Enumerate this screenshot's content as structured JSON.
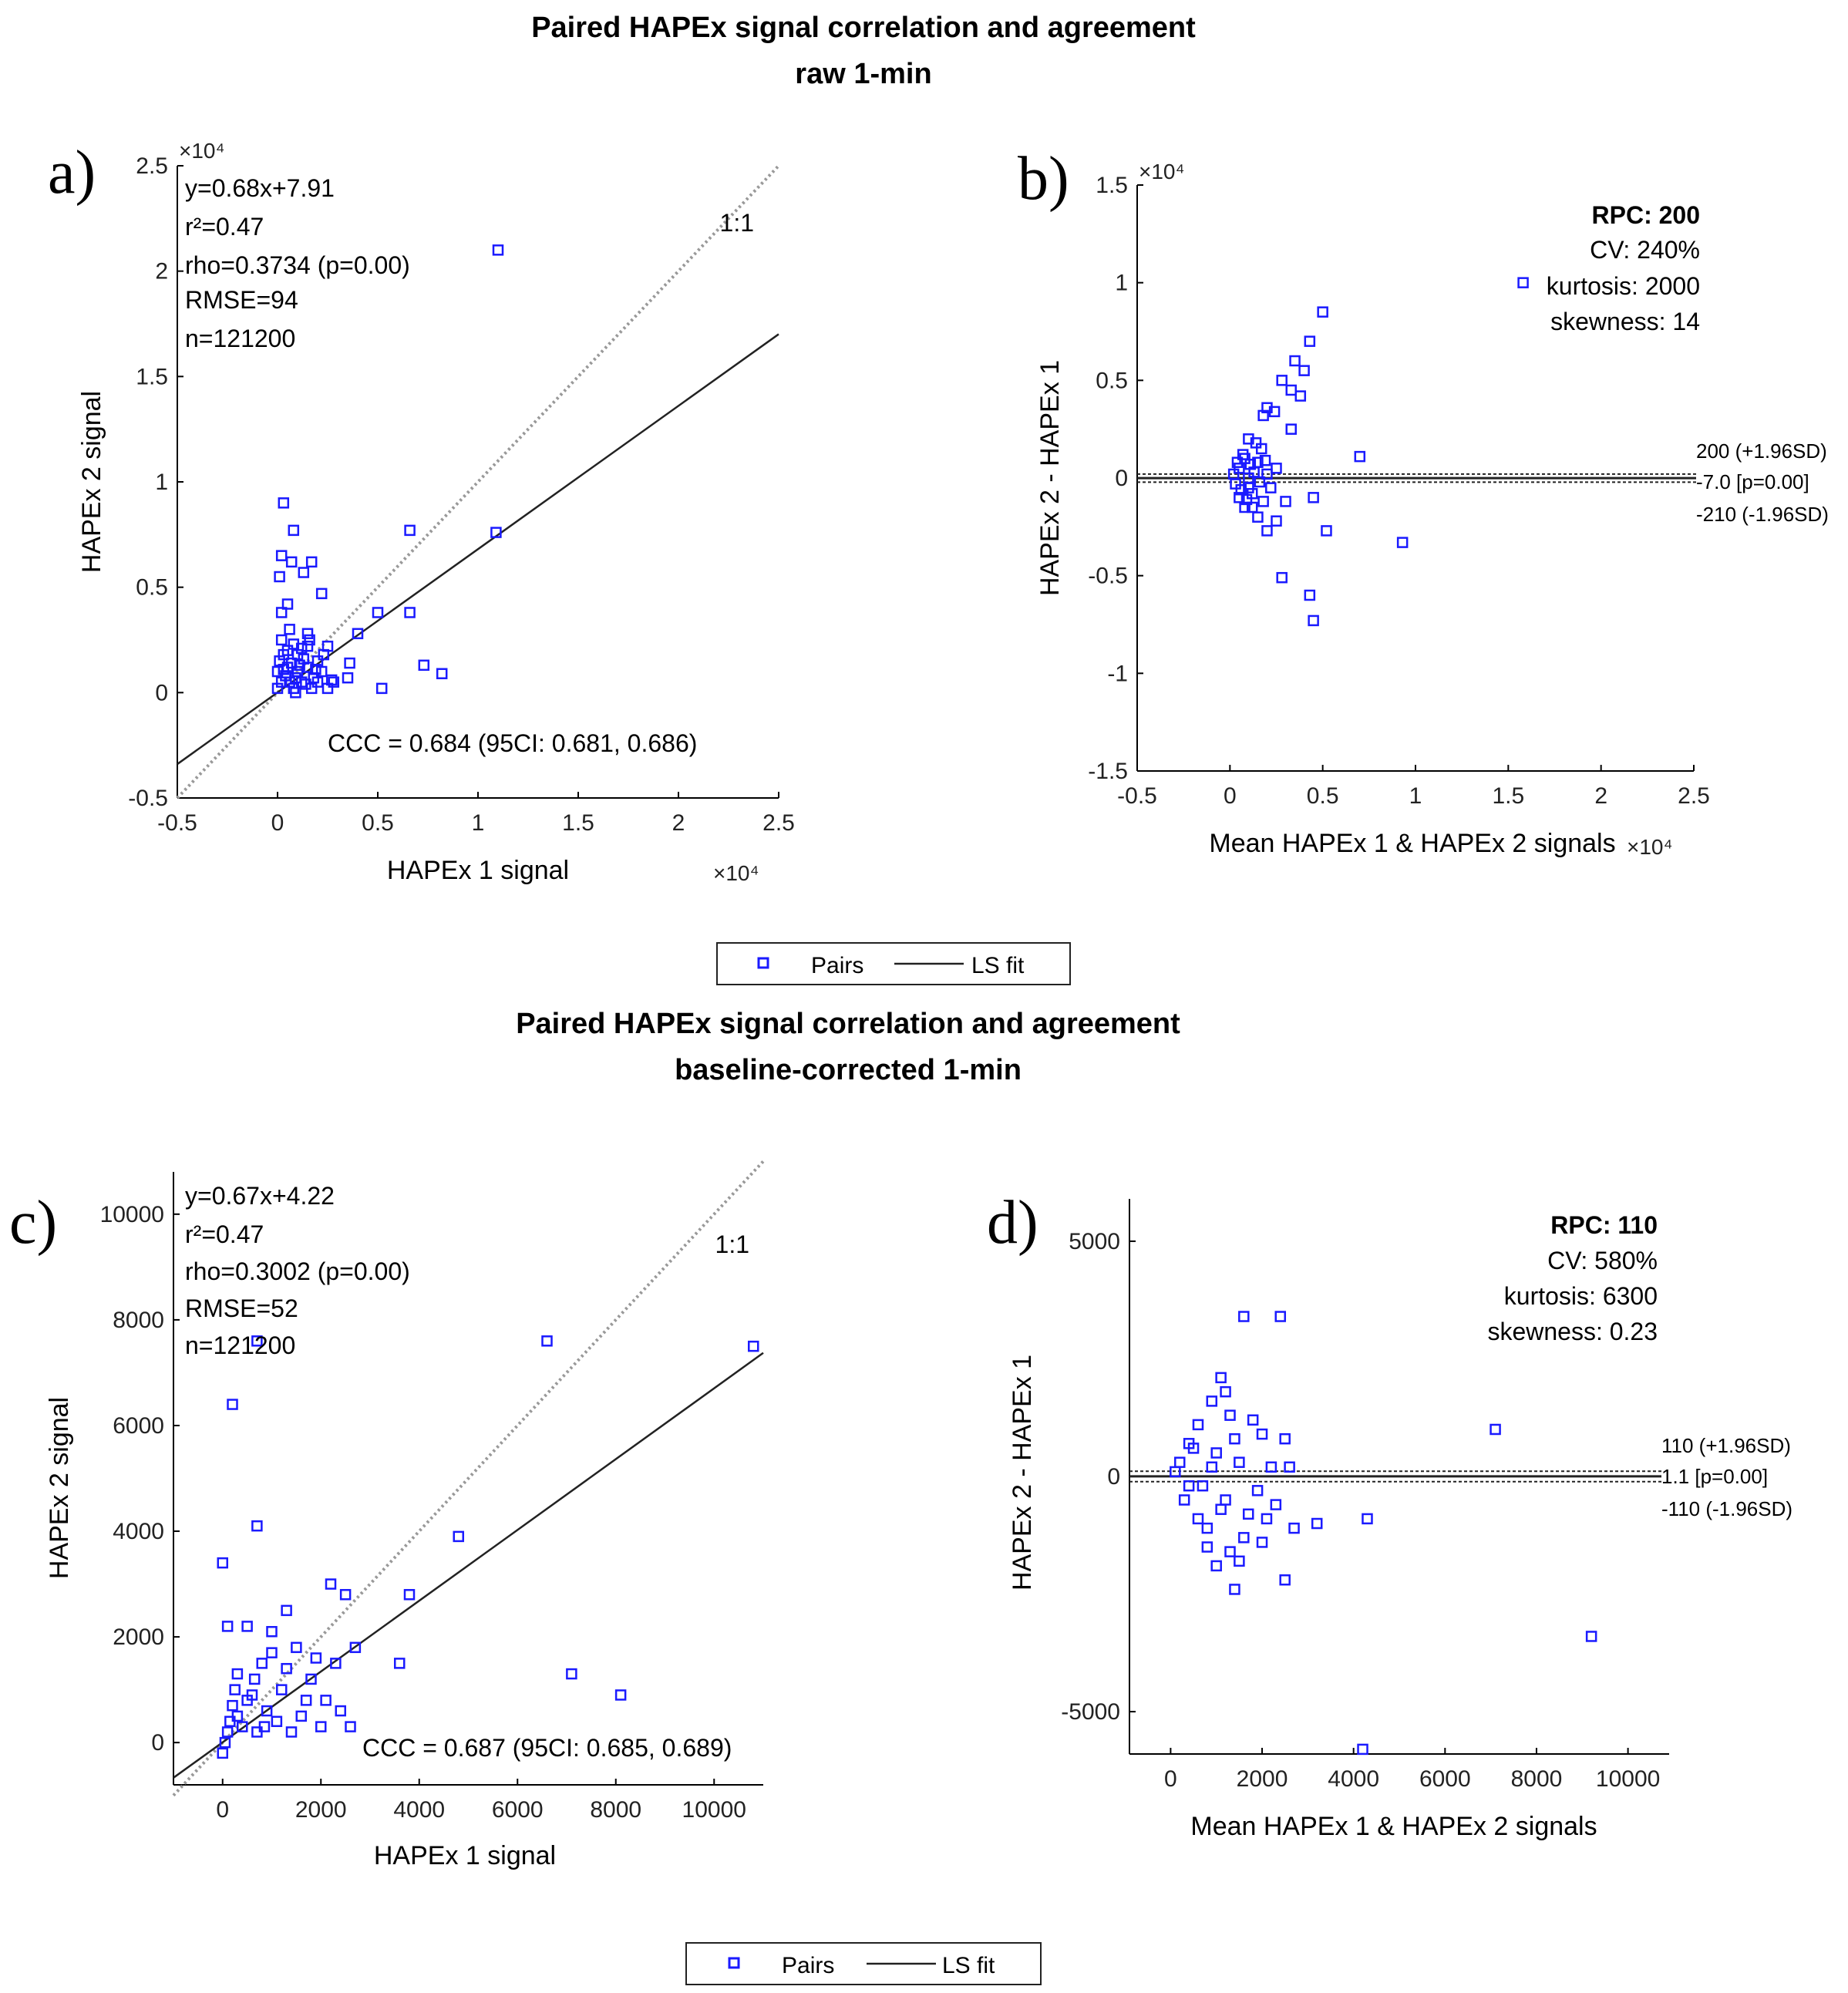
{
  "colors": {
    "points": "#1a1aff",
    "fit": "#222222",
    "ref": "#999999",
    "axis": "#000000"
  },
  "sections": [
    {
      "title_line1": "Paired HAPEx signal correlation and agreement",
      "title_line2": "raw 1-min"
    },
    {
      "title_line1": "Paired HAPEx signal correlation and agreement",
      "title_line2": "baseline-corrected 1-min"
    }
  ],
  "legends": [
    {
      "pairs_label": "Pairs",
      "fit_label": "LS fit"
    },
    {
      "pairs_label": "Pairs",
      "fit_label": "LS fit"
    }
  ],
  "chart_data": [
    {
      "panel": "a)",
      "type": "scatter",
      "xlabel": "HAPEx 1 signal",
      "ylabel": "HAPEx 2 signal",
      "x_exponent": "×10⁴",
      "y_exponent": "×10⁴",
      "xlim": [
        -0.5,
        2.5
      ],
      "ylim": [
        -0.5,
        2.5
      ],
      "xticks": [
        "-0.5",
        "0",
        "0.5",
        "1",
        "1.5",
        "2",
        "2.5"
      ],
      "yticks": [
        "-0.5",
        "0",
        "0.5",
        "1",
        "1.5",
        "2",
        "2.5"
      ],
      "stats": [
        "y=0.68x+7.91",
        "r²=0.47",
        "rho=0.3734 (p=0.00)",
        "RMSE=94",
        "n=121200"
      ],
      "ccc": "CCC = 0.684 (95CI: 0.681, 0.686)",
      "identity_label": "1:1",
      "fit": {
        "slope": 0.68,
        "intercept": 0.000791
      },
      "points": [
        [
          1.1,
          2.1
        ],
        [
          0.03,
          0.9
        ],
        [
          0.08,
          0.77
        ],
        [
          0.02,
          0.65
        ],
        [
          0.07,
          0.62
        ],
        [
          0.17,
          0.62
        ],
        [
          0.13,
          0.57
        ],
        [
          0.01,
          0.55
        ],
        [
          0.22,
          0.47
        ],
        [
          0.05,
          0.42
        ],
        [
          0.02,
          0.38
        ],
        [
          0.66,
          0.77
        ],
        [
          1.09,
          0.76
        ],
        [
          0.5,
          0.38
        ],
        [
          0.66,
          0.38
        ],
        [
          0.4,
          0.28
        ],
        [
          0.73,
          0.13
        ],
        [
          0.82,
          0.09
        ],
        [
          0.52,
          0.02
        ],
        [
          0.35,
          0.07
        ],
        [
          0.27,
          0.06
        ],
        [
          0.36,
          0.14
        ],
        [
          0.15,
          0.28
        ],
        [
          0.25,
          0.22
        ],
        [
          0.02,
          0.25
        ],
        [
          0.05,
          0.2
        ],
        [
          0.1,
          0.18
        ],
        [
          0.15,
          0.22
        ],
        [
          0.2,
          0.15
        ],
        [
          0.05,
          0.12
        ],
        [
          0.1,
          0.1
        ],
        [
          0.15,
          0.12
        ],
        [
          0.2,
          0.05
        ],
        [
          0.02,
          0.05
        ],
        [
          0.08,
          0.02
        ],
        [
          0.12,
          0.05
        ],
        [
          0.17,
          0.02
        ],
        [
          0.22,
          0.1
        ],
        [
          0.01,
          0.15
        ],
        [
          0.04,
          0.08
        ],
        [
          0.07,
          0.14
        ],
        [
          0.13,
          0.16
        ],
        [
          0.18,
          0.07
        ],
        [
          0.25,
          0.02
        ],
        [
          0.0,
          0.02
        ],
        [
          0.03,
          0.11
        ],
        [
          0.06,
          0.05
        ],
        [
          0.09,
          0.07
        ],
        [
          0.11,
          0.13
        ],
        [
          0.14,
          0.04
        ],
        [
          0.19,
          0.11
        ],
        [
          0.28,
          0.05
        ],
        [
          0.23,
          0.18
        ],
        [
          0.16,
          0.25
        ],
        [
          0.08,
          0.23
        ],
        [
          0.03,
          0.18
        ],
        [
          0.12,
          0.21
        ],
        [
          0.06,
          0.3
        ],
        [
          0.0,
          0.1
        ],
        [
          0.09,
          0.0
        ]
      ]
    },
    {
      "panel": "b)",
      "type": "scatter",
      "xlabel": "Mean HAPEx 1 & HAPEx 2 signals",
      "ylabel": "HAPEx 2 - HAPEx 1",
      "x_exponent": "×10⁴",
      "y_exponent": "×10⁴",
      "xlim": [
        -0.5,
        2.5
      ],
      "ylim": [
        -1.5,
        1.5
      ],
      "xticks": [
        "-0.5",
        "0",
        "0.5",
        "1",
        "1.5",
        "2",
        "2.5"
      ],
      "yticks": [
        "-1.5",
        "-1",
        "-0.5",
        "0",
        "0.5",
        "1",
        "1.5"
      ],
      "rpc": "RPC: 200",
      "stats": [
        "CV: 240%",
        "kurtosis: 2000",
        "skewness: 14"
      ],
      "limits": {
        "upper": 0.02,
        "mean": -0.0007,
        "lower": -0.021
      },
      "limit_labels": [
        "200 (+1.96SD)",
        "-7.0 [p=0.00]",
        "-210 (-1.96SD)"
      ],
      "points": [
        [
          0.5,
          0.85
        ],
        [
          0.43,
          0.7
        ],
        [
          0.35,
          0.6
        ],
        [
          0.4,
          0.55
        ],
        [
          0.28,
          0.5
        ],
        [
          0.33,
          0.45
        ],
        [
          0.38,
          0.42
        ],
        [
          0.2,
          0.36
        ],
        [
          0.24,
          0.34
        ],
        [
          0.18,
          0.32
        ],
        [
          0.33,
          0.25
        ],
        [
          0.7,
          0.11
        ],
        [
          0.93,
          -0.33
        ],
        [
          0.45,
          -0.1
        ],
        [
          0.52,
          -0.27
        ],
        [
          0.28,
          -0.51
        ],
        [
          0.43,
          -0.6
        ],
        [
          0.45,
          -0.73
        ],
        [
          0.3,
          -0.12
        ],
        [
          0.25,
          -0.22
        ],
        [
          0.2,
          -0.27
        ],
        [
          0.15,
          -0.2
        ],
        [
          0.1,
          0.2
        ],
        [
          0.12,
          -0.15
        ],
        [
          0.08,
          0.1
        ],
        [
          0.05,
          0.05
        ],
        [
          0.1,
          -0.05
        ],
        [
          0.15,
          0.08
        ],
        [
          0.2,
          0.02
        ],
        [
          0.03,
          -0.03
        ],
        [
          0.07,
          0.12
        ],
        [
          0.12,
          -0.08
        ],
        [
          0.17,
          0.15
        ],
        [
          0.22,
          -0.05
        ],
        [
          0.05,
          -0.1
        ],
        [
          0.1,
          0.0
        ],
        [
          0.18,
          -0.12
        ],
        [
          0.25,
          0.05
        ],
        [
          0.02,
          0.02
        ],
        [
          0.14,
          0.18
        ],
        [
          0.08,
          -0.15
        ],
        [
          0.16,
          -0.02
        ],
        [
          0.11,
          0.07
        ],
        [
          0.06,
          -0.06
        ],
        [
          0.13,
          0.03
        ],
        [
          0.19,
          0.09
        ],
        [
          0.04,
          0.08
        ],
        [
          0.09,
          -0.11
        ],
        [
          1.58,
          1.0
        ]
      ]
    },
    {
      "panel": "c)",
      "type": "scatter",
      "xlabel": "HAPEx 1 signal",
      "ylabel": "HAPEx 2 signal",
      "xlim": [
        -1000,
        11000
      ],
      "ylim": [
        -800,
        10800
      ],
      "xticks": [
        "0",
        "2000",
        "4000",
        "6000",
        "8000",
        "10000"
      ],
      "yticks": [
        "0",
        "2000",
        "4000",
        "6000",
        "8000",
        "10000"
      ],
      "stats": [
        "y=0.67x+4.22",
        "r²=0.47",
        "rho=0.3002 (p=0.00)",
        "RMSE=52",
        "n=121200"
      ],
      "ccc": "CCC = 0.687 (95CI: 0.685, 0.689)",
      "identity_label": "1:1",
      "fit": {
        "slope": 0.67,
        "intercept": 4.22
      },
      "points": [
        [
          700,
          7600
        ],
        [
          6600,
          7600
        ],
        [
          10800,
          7500
        ],
        [
          200,
          6400
        ],
        [
          700,
          4100
        ],
        [
          4800,
          3900
        ],
        [
          0,
          3400
        ],
        [
          3800,
          2800
        ],
        [
          2500,
          2800
        ],
        [
          2200,
          3000
        ],
        [
          1300,
          2500
        ],
        [
          3600,
          1500
        ],
        [
          7100,
          1300
        ],
        [
          8100,
          900
        ],
        [
          2700,
          1800
        ],
        [
          2300,
          1500
        ],
        [
          1800,
          1200
        ],
        [
          1000,
          2100
        ],
        [
          500,
          2200
        ],
        [
          100,
          2200
        ],
        [
          1500,
          1800
        ],
        [
          800,
          1500
        ],
        [
          300,
          1300
        ],
        [
          1200,
          1000
        ],
        [
          600,
          900
        ],
        [
          200,
          700
        ],
        [
          900,
          600
        ],
        [
          1600,
          500
        ],
        [
          2100,
          800
        ],
        [
          2400,
          600
        ],
        [
          1100,
          400
        ],
        [
          400,
          300
        ],
        [
          100,
          200
        ],
        [
          700,
          200
        ],
        [
          1400,
          200
        ],
        [
          2000,
          300
        ],
        [
          2600,
          300
        ],
        [
          50,
          0
        ],
        [
          300,
          500
        ],
        [
          500,
          800
        ],
        [
          1300,
          1400
        ],
        [
          1000,
          1700
        ],
        [
          1900,
          1600
        ],
        [
          250,
          1000
        ],
        [
          650,
          1200
        ],
        [
          1700,
          800
        ],
        [
          150,
          400
        ],
        [
          850,
          300
        ],
        [
          0,
          -200
        ]
      ]
    },
    {
      "panel": "d)",
      "type": "scatter",
      "xlabel": "Mean HAPEx 1 & HAPEx 2 signals",
      "ylabel": "HAPEx 2 - HAPEx 1",
      "xlim": [
        -900,
        10900
      ],
      "ylim": [
        -5900,
        5900
      ],
      "xticks": [
        "0",
        "2000",
        "4000",
        "6000",
        "8000",
        "10000"
      ],
      "yticks": [
        "-5000",
        "0",
        "5000"
      ],
      "rpc": "RPC: 110",
      "stats": [
        "CV: 580%",
        "kurtosis: 6300",
        "skewness: 0.23"
      ],
      "limits": {
        "upper": 110,
        "mean": 1.1,
        "lower": -110
      },
      "limit_labels": [
        "110 (+1.96SD)",
        "1.1 [p=0.00]",
        "-110 (-1.96SD)"
      ],
      "points": [
        [
          1600,
          3400
        ],
        [
          2400,
          3400
        ],
        [
          7100,
          1000
        ],
        [
          9200,
          -3400
        ],
        [
          4200,
          -5800
        ],
        [
          4300,
          -900
        ],
        [
          3200,
          -1000
        ],
        [
          2500,
          -2200
        ],
        [
          1400,
          -2400
        ],
        [
          1100,
          2100
        ],
        [
          900,
          1600
        ],
        [
          1300,
          1300
        ],
        [
          1800,
          1200
        ],
        [
          2000,
          900
        ],
        [
          2500,
          800
        ],
        [
          600,
          1100
        ],
        [
          400,
          700
        ],
        [
          1000,
          500
        ],
        [
          1500,
          300
        ],
        [
          2200,
          200
        ],
        [
          2600,
          200
        ],
        [
          200,
          300
        ],
        [
          700,
          -200
        ],
        [
          1200,
          -500
        ],
        [
          1700,
          -800
        ],
        [
          2100,
          -900
        ],
        [
          800,
          -1100
        ],
        [
          1300,
          -1600
        ],
        [
          1000,
          -1900
        ],
        [
          1500,
          -1800
        ],
        [
          2000,
          -1400
        ],
        [
          300,
          -500
        ],
        [
          500,
          600
        ],
        [
          1100,
          -700
        ],
        [
          1900,
          -300
        ],
        [
          600,
          -900
        ],
        [
          1400,
          800
        ],
        [
          2300,
          -600
        ],
        [
          2700,
          -1100
        ],
        [
          100,
          100
        ],
        [
          400,
          -200
        ],
        [
          900,
          200
        ],
        [
          1600,
          -1300
        ],
        [
          1200,
          1800
        ],
        [
          800,
          -1500
        ]
      ]
    }
  ]
}
